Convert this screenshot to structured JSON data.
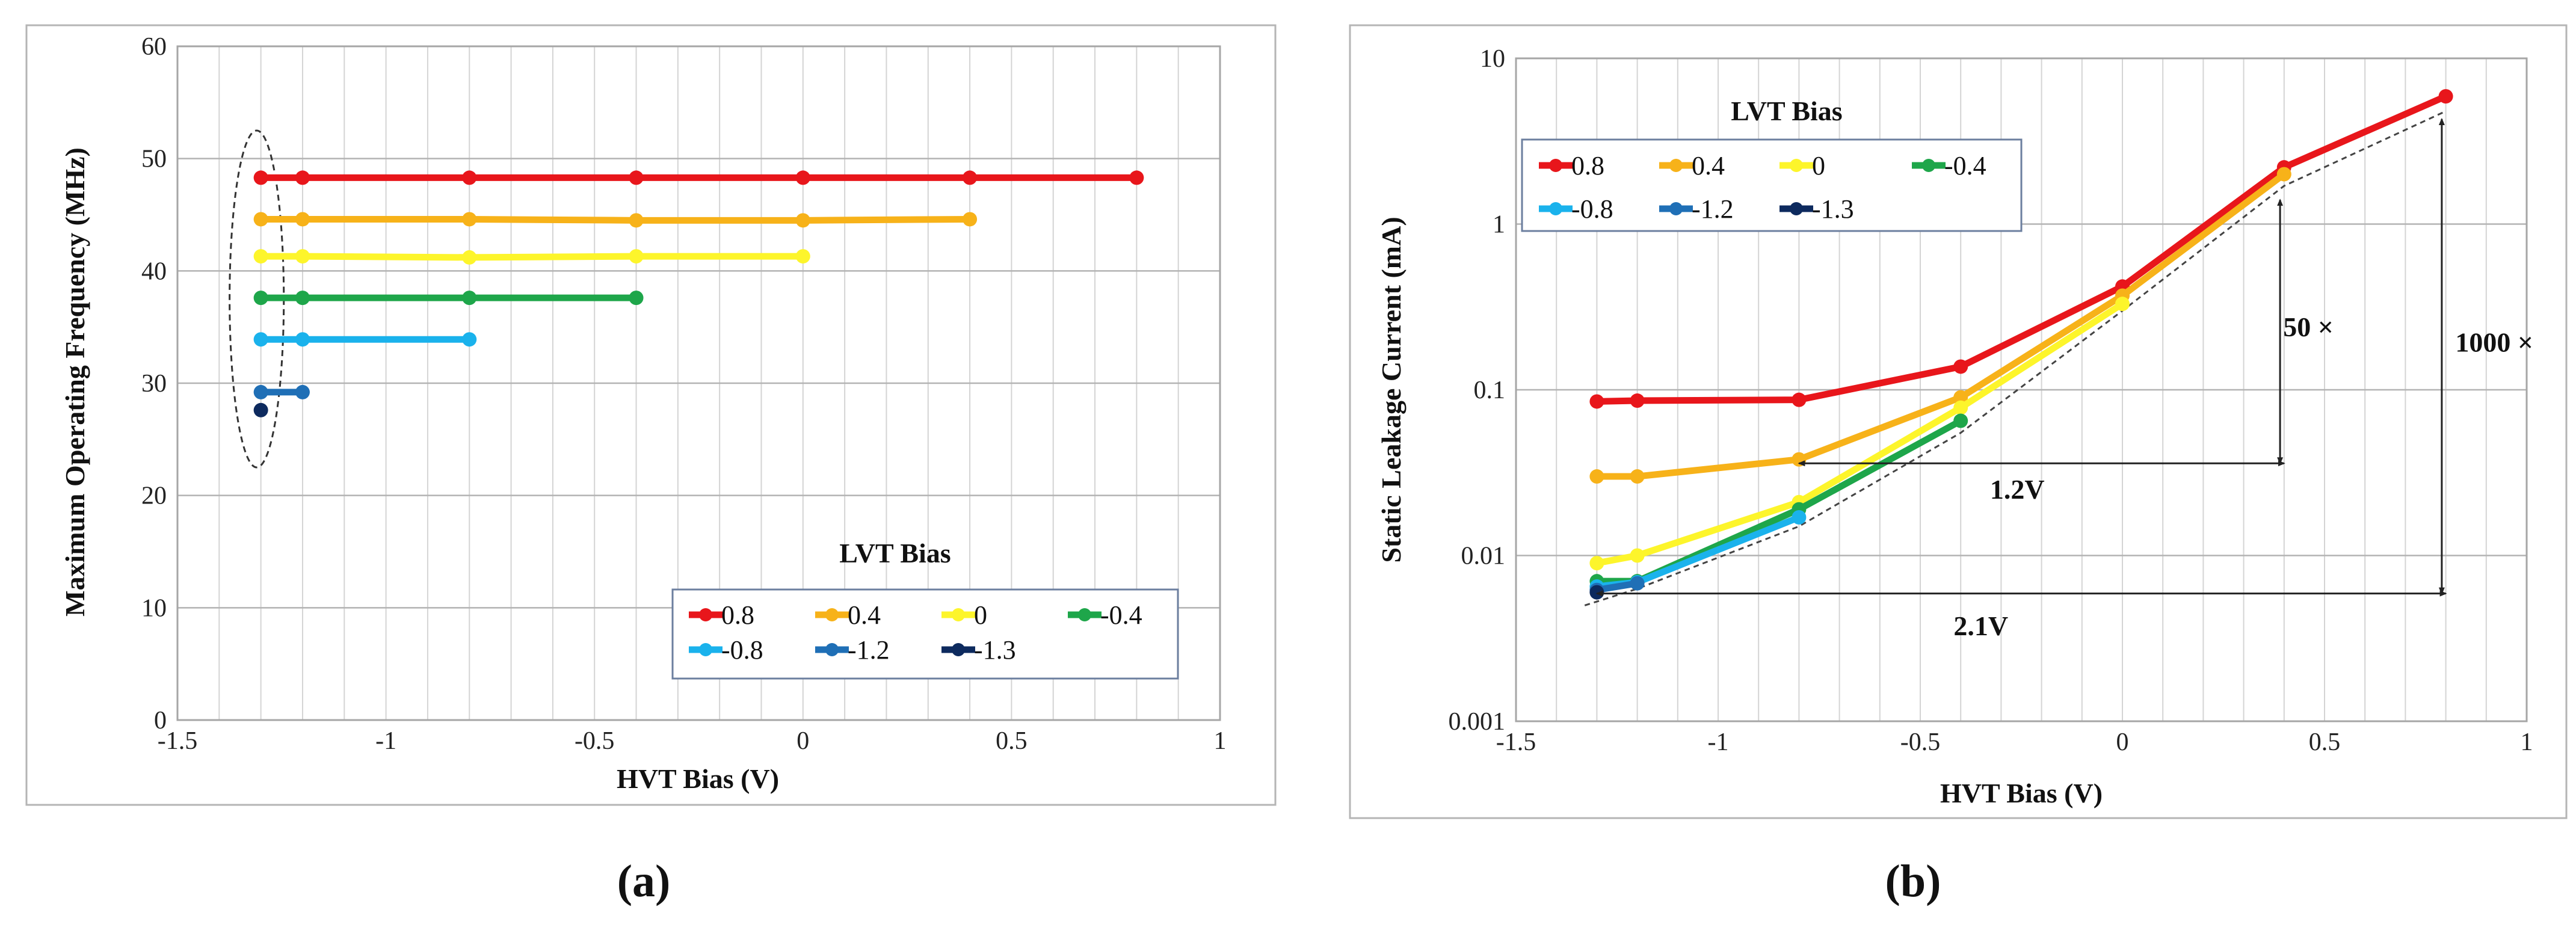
{
  "colors": {
    "0.8": "#e8161b",
    "0.4": "#f7b219",
    "0": "#fdf52b",
    "-0.4": "#1ea64a",
    "-0.8": "#1ab2ec",
    "-1.2": "#1f6fb6",
    "-1.3": "#0d2a5e"
  },
  "panels": [
    {
      "label": "(a)",
      "chart_data": {
        "type": "line",
        "xlabel": "HVT Bias (V)",
        "ylabel": "Maximum Operating Frequency (MHz)",
        "xlim": [
          -1.5,
          1
        ],
        "ylim": [
          0,
          60
        ],
        "yscale": "linear",
        "xticks": [
          -1.5,
          -1,
          -0.5,
          0,
          0.5,
          1
        ],
        "xtick_labels": [
          "-1.5",
          "-1",
          "-0.5",
          "0",
          "0.5",
          "1"
        ],
        "yticks": [
          0,
          10,
          20,
          30,
          40,
          50,
          60
        ],
        "ytick_labels": [
          "0",
          "10",
          "20",
          "30",
          "40",
          "50",
          "60"
        ],
        "grid": true,
        "legend": {
          "title": "LVT Bias",
          "position": "bottom-right",
          "entries": [
            "0.8",
            "0.4",
            "0",
            "-0.4",
            "-0.8",
            "-1.2",
            "-1.3"
          ]
        },
        "series": [
          {
            "name": "0.8",
            "x": [
              -1.3,
              -1.2,
              -0.8,
              -0.4,
              0,
              0.4,
              0.8
            ],
            "y": [
              48.3,
              48.3,
              48.3,
              48.3,
              48.3,
              48.3,
              48.3
            ]
          },
          {
            "name": "0.4",
            "x": [
              -1.3,
              -1.2,
              -0.8,
              -0.4,
              0,
              0.4
            ],
            "y": [
              44.6,
              44.6,
              44.6,
              44.5,
              44.5,
              44.6
            ]
          },
          {
            "name": "0",
            "x": [
              -1.3,
              -1.2,
              -0.8,
              -0.4,
              0
            ],
            "y": [
              41.3,
              41.3,
              41.2,
              41.3,
              41.3
            ]
          },
          {
            "name": "-0.4",
            "x": [
              -1.3,
              -1.2,
              -0.8,
              -0.4
            ],
            "y": [
              37.6,
              37.6,
              37.6,
              37.6
            ]
          },
          {
            "name": "-0.8",
            "x": [
              -1.3,
              -1.2,
              -0.8
            ],
            "y": [
              33.9,
              33.9,
              33.9
            ]
          },
          {
            "name": "-1.2",
            "x": [
              -1.3,
              -1.2
            ],
            "y": [
              29.2,
              29.2
            ]
          },
          {
            "name": "-1.3",
            "x": [
              -1.3
            ],
            "y": [
              27.6
            ]
          }
        ],
        "annotations": [
          {
            "type": "dashed-ellipse",
            "note": "encloses lowest HVT bias points",
            "cx": -1.31,
            "cy": 37.5,
            "rx": 0.065,
            "ry": 15
          }
        ]
      }
    },
    {
      "label": "(b)",
      "chart_data": {
        "type": "line",
        "xlabel": "HVT Bias (V)",
        "ylabel": "Static Leakage Current (mA)",
        "xlim": [
          -1.5,
          1
        ],
        "ylim": [
          0.001,
          10
        ],
        "yscale": "log",
        "xticks": [
          -1.5,
          -1,
          -0.5,
          0,
          0.5,
          1
        ],
        "xtick_labels": [
          "-1.5",
          "-1",
          "-0.5",
          "0",
          "0.5",
          "1"
        ],
        "yticks": [
          0.001,
          0.01,
          0.1,
          1,
          10
        ],
        "ytick_labels": [
          "0.001",
          "0.01",
          "0.1",
          "1",
          "10"
        ],
        "grid": true,
        "legend": {
          "title": "LVT Bias",
          "position": "top-left",
          "entries": [
            "0.8",
            "0.4",
            "0",
            "-0.4",
            "-0.8",
            "-1.2",
            "-1.3"
          ]
        },
        "series": [
          {
            "name": "0.8",
            "x": [
              -1.3,
              -1.2,
              -0.8,
              -0.4,
              0,
              0.4,
              0.8
            ],
            "y": [
              0.085,
              0.086,
              0.087,
              0.138,
              0.42,
              2.2,
              5.9
            ]
          },
          {
            "name": "0.4",
            "x": [
              -1.3,
              -1.2,
              -0.8,
              -0.4,
              0,
              0.4
            ],
            "y": [
              0.03,
              0.03,
              0.038,
              0.09,
              0.37,
              2.0
            ]
          },
          {
            "name": "0",
            "x": [
              -1.3,
              -1.2,
              -0.8,
              -0.4,
              0
            ],
            "y": [
              0.009,
              0.01,
              0.021,
              0.078,
              0.33
            ]
          },
          {
            "name": "-0.4",
            "x": [
              -1.3,
              -1.2,
              -0.8,
              -0.4
            ],
            "y": [
              0.007,
              0.007,
              0.019,
              0.065
            ]
          },
          {
            "name": "-0.8",
            "x": [
              -1.3,
              -1.2,
              -0.8
            ],
            "y": [
              0.0065,
              0.0069,
              0.017
            ]
          },
          {
            "name": "-1.2",
            "x": [
              -1.3,
              -1.2
            ],
            "y": [
              0.0062,
              0.0068
            ]
          },
          {
            "name": "-1.3",
            "x": [
              -1.3
            ],
            "y": [
              0.006
            ]
          }
        ],
        "dashed_envelope": {
          "x": [
            -1.33,
            -1.2,
            -0.8,
            -0.4,
            0,
            0.4,
            0.8
          ],
          "y": [
            0.005,
            0.0063,
            0.015,
            0.055,
            0.3,
            1.7,
            4.8
          ]
        },
        "annotations": [
          {
            "text": "1.2V",
            "arrow": "horizontal",
            "x_from": -0.8,
            "x_to": 0.4,
            "y": 0.036,
            "label_x": -0.26,
            "label_y": 0.022
          },
          {
            "text": "2.1V",
            "arrow": "horizontal",
            "x_from": -1.3,
            "x_to": 0.8,
            "y": 0.0059,
            "label_x": -0.35,
            "label_y": 0.0033
          },
          {
            "text": "50 ×",
            "arrow": "vertical",
            "x": 0.39,
            "y_from": 0.036,
            "y_to": 1.4,
            "label_x": 0.46,
            "label_y": 0.21
          },
          {
            "text": "1000 ×",
            "arrow": "vertical",
            "x": 0.79,
            "y_from": 0.0059,
            "y_to": 4.3,
            "label_x": 0.92,
            "label_y": 0.17
          }
        ]
      }
    }
  ]
}
